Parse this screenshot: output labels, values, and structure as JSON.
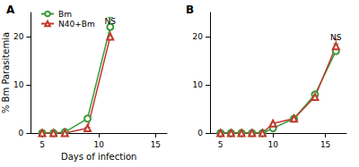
{
  "chart_data": [
    {
      "type": "line",
      "title": "A",
      "x_label": "Days of infection",
      "y_label": "% Bm Parasitemia",
      "x": [
        5,
        6,
        7,
        9,
        11
      ],
      "series": [
        {
          "name": "Bm",
          "color": "#3a9a3a",
          "marker": "circle",
          "values": [
            0,
            0,
            0.2,
            3,
            22
          ],
          "errors": [
            0,
            0,
            0,
            0.3,
            2
          ]
        },
        {
          "name": "N40+Bm",
          "color": "#c0392b",
          "marker": "triangle",
          "values": [
            0,
            0,
            0,
            1,
            20
          ],
          "errors": [
            0,
            0,
            0,
            0.2,
            1.5
          ]
        }
      ],
      "xlim": [
        4,
        16
      ],
      "xticks": [
        5,
        10,
        15
      ],
      "ylim": [
        0,
        25
      ],
      "yticks": [
        0,
        10,
        20
      ],
      "legend": "upper left",
      "annotations": [
        {
          "text": "NS",
          "x": 11,
          "y": 25
        }
      ]
    },
    {
      "type": "line",
      "title": "B",
      "x": [
        5,
        6,
        7,
        8,
        9,
        10,
        12,
        14,
        16
      ],
      "series": [
        {
          "name": "Bm",
          "color": "#3a9a3a",
          "marker": "circle",
          "values": [
            0,
            0,
            0,
            0,
            0,
            1,
            3,
            8,
            17
          ],
          "errors": [
            0,
            0,
            0,
            0,
            0,
            0,
            0,
            0.3,
            1.5
          ]
        },
        {
          "name": "N40+Bm",
          "color": "#c0392b",
          "marker": "triangle",
          "values": [
            0,
            0,
            0,
            0,
            0,
            2,
            3,
            7.5,
            18
          ],
          "errors": [
            0,
            0,
            0,
            0,
            0,
            0,
            0,
            0.3,
            1.5
          ]
        }
      ],
      "xlim": [
        4,
        17
      ],
      "xticks": [
        5,
        10,
        15
      ],
      "ylim": [
        0,
        25
      ],
      "yticks": [
        0,
        10,
        20
      ],
      "annotations": [
        {
          "text": "NS",
          "x": 16,
          "y": 21.5
        }
      ]
    }
  ]
}
